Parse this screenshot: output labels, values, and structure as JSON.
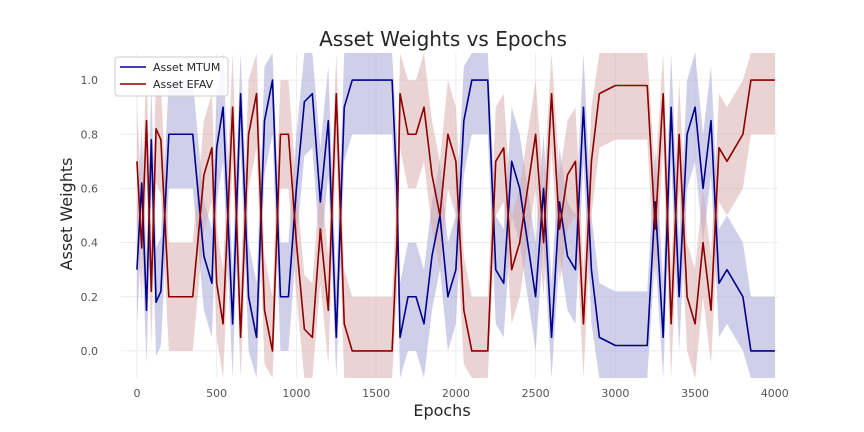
{
  "chart_data": {
    "type": "line",
    "title": "Asset Weights vs Epochs",
    "xlabel": "Epochs",
    "ylabel": "Asset Weights",
    "xlim": [
      -100,
      4020
    ],
    "ylim": [
      -0.1,
      1.1
    ],
    "xticks": [
      "0",
      "500",
      "1000",
      "1500",
      "2000",
      "2500",
      "3000",
      "3500",
      "4000"
    ],
    "yticks": [
      "0.0",
      "0.2",
      "0.4",
      "0.6",
      "0.8",
      "1.0"
    ],
    "grid": true,
    "legend_position": "top-left",
    "band": {
      "lower_offset": 0.2,
      "upper_offset": 0.2
    },
    "series": [
      {
        "name": "Asset MTUM",
        "color": "#00008b",
        "band_color": "#9fa0d4",
        "x": [
          0,
          30,
          60,
          90,
          120,
          150,
          200,
          250,
          300,
          350,
          420,
          470,
          500,
          540,
          600,
          650,
          700,
          750,
          800,
          850,
          900,
          950,
          1000,
          1050,
          1100,
          1150,
          1200,
          1250,
          1300,
          1350,
          1400,
          1450,
          1500,
          1550,
          1600,
          1630,
          1650,
          1700,
          1750,
          1800,
          1850,
          1900,
          1950,
          2000,
          2050,
          2100,
          2150,
          2200,
          2250,
          2300,
          2350,
          2400,
          2450,
          2500,
          2550,
          2600,
          2650,
          2700,
          2750,
          2800,
          2850,
          2900,
          3000,
          3100,
          3200,
          3250,
          3300,
          3350,
          3400,
          3450,
          3500,
          3550,
          3600,
          3650,
          3700,
          3750,
          3800,
          3850,
          3900,
          4000
        ],
        "values": [
          0.3,
          0.62,
          0.15,
          0.78,
          0.18,
          0.22,
          0.8,
          0.8,
          0.8,
          0.8,
          0.35,
          0.25,
          0.75,
          0.9,
          0.1,
          0.95,
          0.2,
          0.05,
          0.85,
          1.0,
          0.2,
          0.2,
          0.6,
          0.92,
          0.95,
          0.55,
          0.85,
          0.05,
          0.9,
          1.0,
          1.0,
          1.0,
          1.0,
          1.0,
          1.0,
          0.6,
          0.05,
          0.2,
          0.2,
          0.1,
          0.35,
          0.5,
          0.2,
          0.3,
          0.85,
          1.0,
          1.0,
          1.0,
          0.3,
          0.25,
          0.7,
          0.6,
          0.4,
          0.2,
          0.6,
          0.05,
          0.55,
          0.35,
          0.3,
          0.9,
          0.3,
          0.05,
          0.02,
          0.02,
          0.02,
          0.55,
          0.05,
          0.9,
          0.2,
          0.8,
          0.9,
          0.6,
          0.85,
          0.25,
          0.3,
          0.25,
          0.2,
          0.0,
          0.0,
          0.0
        ]
      },
      {
        "name": "Asset EFAV",
        "color": "#8b0000",
        "band_color": "#d8a8a8",
        "x": [
          0,
          30,
          60,
          90,
          120,
          150,
          200,
          250,
          300,
          350,
          420,
          470,
          500,
          540,
          600,
          650,
          700,
          750,
          800,
          850,
          900,
          950,
          1000,
          1050,
          1100,
          1150,
          1200,
          1250,
          1300,
          1350,
          1400,
          1450,
          1500,
          1550,
          1600,
          1630,
          1650,
          1700,
          1750,
          1800,
          1850,
          1900,
          1950,
          2000,
          2050,
          2100,
          2150,
          2200,
          2250,
          2300,
          2350,
          2400,
          2450,
          2500,
          2550,
          2600,
          2650,
          2700,
          2750,
          2800,
          2850,
          2900,
          3000,
          3100,
          3200,
          3250,
          3300,
          3350,
          3400,
          3450,
          3500,
          3550,
          3600,
          3650,
          3700,
          3750,
          3800,
          3850,
          3900,
          4000
        ],
        "values": [
          0.7,
          0.38,
          0.85,
          0.22,
          0.82,
          0.78,
          0.2,
          0.2,
          0.2,
          0.2,
          0.65,
          0.75,
          0.25,
          0.1,
          0.9,
          0.05,
          0.8,
          0.95,
          0.15,
          0.0,
          0.8,
          0.8,
          0.4,
          0.08,
          0.05,
          0.45,
          0.15,
          0.95,
          0.1,
          0.0,
          0.0,
          0.0,
          0.0,
          0.0,
          0.0,
          0.4,
          0.95,
          0.8,
          0.8,
          0.9,
          0.65,
          0.5,
          0.8,
          0.7,
          0.15,
          0.0,
          0.0,
          0.0,
          0.7,
          0.75,
          0.3,
          0.4,
          0.6,
          0.8,
          0.4,
          0.95,
          0.45,
          0.65,
          0.7,
          0.1,
          0.7,
          0.95,
          0.98,
          0.98,
          0.98,
          0.45,
          0.95,
          0.1,
          0.8,
          0.2,
          0.1,
          0.4,
          0.15,
          0.75,
          0.7,
          0.75,
          0.8,
          1.0,
          1.0,
          1.0
        ]
      }
    ]
  }
}
